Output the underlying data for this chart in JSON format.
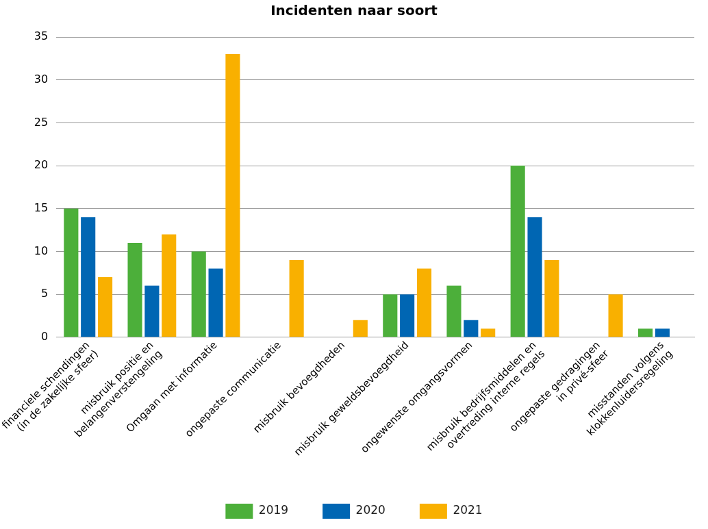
{
  "chart_data": {
    "type": "bar",
    "title": "Incidenten naar soort",
    "categories": [
      "financiele schendingen\n(in de zakelijke sfeer)",
      "misbruik positie en\nbelangenverstengeling",
      "Omgaan met informatie",
      "ongepaste communicatie",
      "misbruik bevoegdheden",
      "misbruik geweldsbevoegdheid",
      "ongewenste omgangsvormen",
      "misbruik bedrijfsmiddelen en\novertreding interne regels",
      "ongepaste gedragingen\nin privé-sfeer",
      "misstanden volgens\nklokkenluidersregeling"
    ],
    "series": [
      {
        "name": "2019",
        "color": "#4caf3a",
        "values": [
          15,
          11,
          10,
          0,
          0,
          5,
          6,
          20,
          0,
          1
        ]
      },
      {
        "name": "2020",
        "color": "#0066b3",
        "values": [
          14,
          6,
          8,
          0,
          0,
          5,
          2,
          14,
          0,
          1
        ]
      },
      {
        "name": "2021",
        "color": "#f9b000",
        "values": [
          7,
          12,
          33,
          9,
          2,
          8,
          1,
          9,
          5,
          0
        ]
      }
    ],
    "ylim": [
      0,
      35
    ],
    "yticks": [
      0,
      5,
      10,
      15,
      20,
      25,
      30,
      35
    ],
    "grid": "y",
    "legend": "bottom"
  }
}
